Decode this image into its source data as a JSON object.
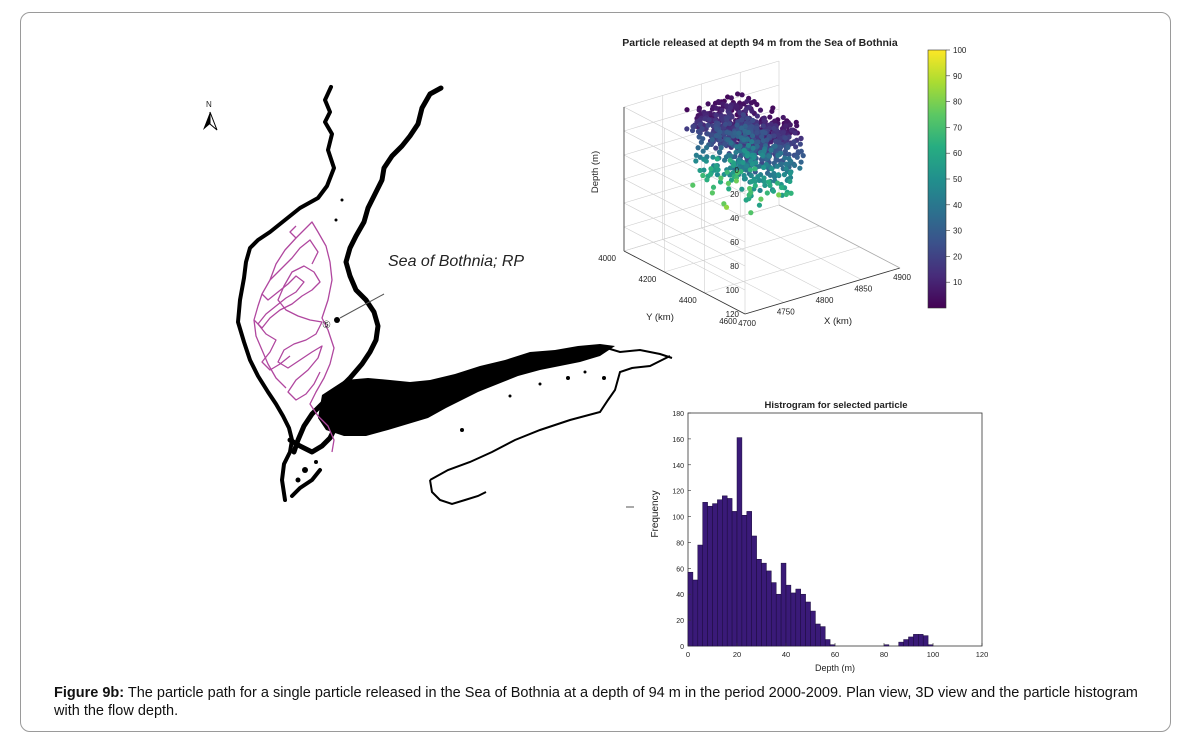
{
  "caption": {
    "figure_label": "Figure 9b:",
    "text": " The particle path for a single particle released in the Sea of Bothnia at a depth of 94 m in the period 2000-2009. Plan view, 3D view and the particle histogram with the flow depth."
  },
  "map": {
    "north_label": "N",
    "place_label": "Sea of Bothnia; RP",
    "release_marker": "⑤",
    "coast_color": "#000000",
    "path_color": "#b0479f"
  },
  "chart_data": [
    {
      "type": "scatter3d",
      "title": "Particle released at depth 94 m from the Sea of Bothnia",
      "xlabel": "X (km)",
      "ylabel": "Y (km)",
      "zlabel": "Depth (m)",
      "xlim": [
        4700,
        4900
      ],
      "ylim": [
        4000,
        4600
      ],
      "zlim": [
        0,
        120
      ],
      "xticks": [
        "4700",
        "4750",
        "4800",
        "4850",
        "4900"
      ],
      "yticks": [
        "4000",
        "4200",
        "4400",
        "4600"
      ],
      "zticks": [
        "0",
        "20",
        "40",
        "60",
        "80",
        "100",
        "120"
      ],
      "colorbar": {
        "min": 0,
        "max": 100,
        "ticks": [
          "10",
          "20",
          "30",
          "40",
          "50",
          "60",
          "70",
          "80",
          "90",
          "100"
        ],
        "colormap": [
          "#440154",
          "#472c7a",
          "#3b518b",
          "#2c718e",
          "#21908d",
          "#27ad81",
          "#5cc863",
          "#aadc32",
          "#fde725"
        ]
      },
      "grid": true
    },
    {
      "type": "bar",
      "title": "Histrogram for selected particle",
      "xlabel": "Depth (m)",
      "ylabel": "Frequency",
      "xlim": [
        0,
        120
      ],
      "ylim": [
        0,
        180
      ],
      "xticks": [
        "0",
        "20",
        "40",
        "60",
        "80",
        "100",
        "120"
      ],
      "yticks": [
        "0",
        "20",
        "40",
        "60",
        "80",
        "100",
        "120",
        "140",
        "160",
        "180"
      ],
      "bar_color": "#3a1a78",
      "bin_width": 2,
      "bin_starts": [
        0,
        2,
        4,
        6,
        8,
        10,
        12,
        14,
        16,
        18,
        20,
        22,
        24,
        26,
        28,
        30,
        32,
        34,
        36,
        38,
        40,
        42,
        44,
        46,
        48,
        50,
        52,
        54,
        56,
        58,
        60,
        62,
        64,
        66,
        68,
        70,
        72,
        74,
        76,
        78,
        80,
        82,
        84,
        86,
        88,
        90,
        92,
        94,
        96,
        98
      ],
      "values": [
        57,
        51,
        78,
        111,
        108,
        110,
        113,
        116,
        114,
        104,
        161,
        101,
        104,
        85,
        67,
        64,
        58,
        49,
        40,
        64,
        47,
        41,
        44,
        40,
        34,
        27,
        17,
        15,
        5,
        1,
        0,
        0,
        0,
        0,
        0,
        0,
        0,
        0,
        0,
        0,
        1,
        0,
        0,
        3,
        5,
        7,
        9,
        9,
        8,
        1
      ]
    }
  ]
}
